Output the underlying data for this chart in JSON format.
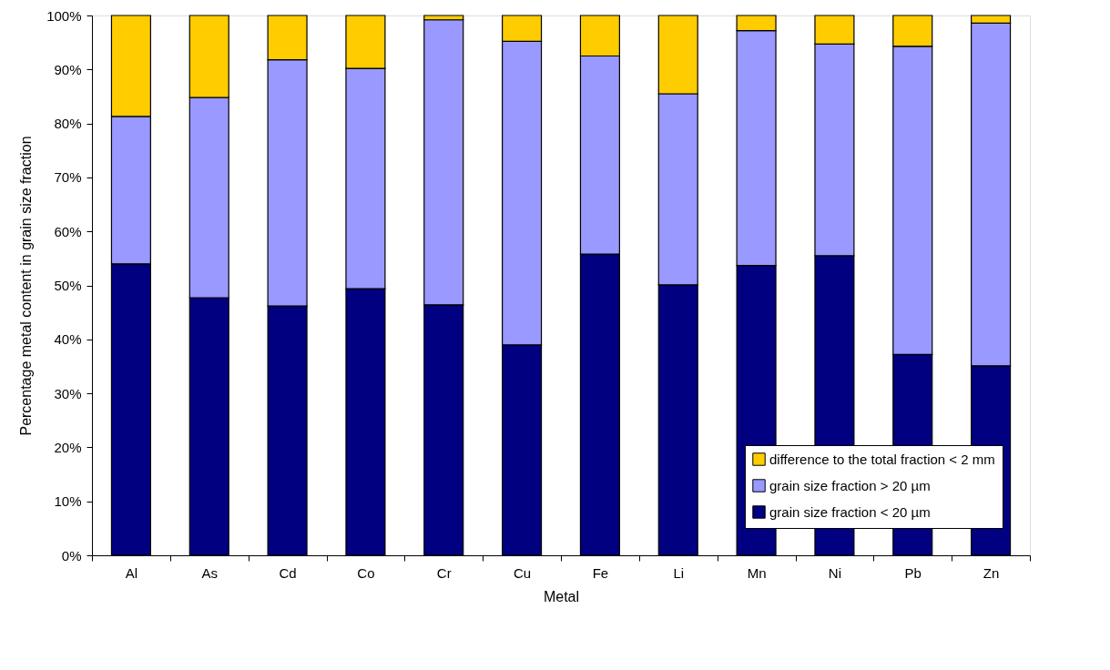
{
  "chart_data": {
    "type": "bar",
    "stacked": true,
    "xlabel": "Metal",
    "ylabel": "Percentage metal content in grain size fraction",
    "categories": [
      "Al",
      "As",
      "Cd",
      "Co",
      "Cr",
      "Cu",
      "Fe",
      "Li",
      "Mn",
      "Ni",
      "Pb",
      "Zn"
    ],
    "series": [
      {
        "name": "grain size fraction < 20 µm",
        "color": "#000080",
        "values": [
          54,
          47.7,
          46.2,
          49.4,
          46.4,
          39,
          55.8,
          50.1,
          53.7,
          55.5,
          37.2,
          35.1
        ]
      },
      {
        "name": "grain size fraction > 20 µm",
        "color": "#9999ff",
        "values": [
          27.3,
          37.1,
          45.6,
          40.8,
          52.8,
          56.2,
          36.7,
          35.4,
          43.5,
          39.2,
          57.1,
          63.5
        ]
      },
      {
        "name": "difference to the total fraction < 2 mm",
        "color": "#ffcc00",
        "values": [
          18.7,
          15.2,
          8.2,
          9.8,
          0.8,
          4.8,
          7.5,
          14.5,
          2.8,
          5.3,
          5.7,
          1.4
        ]
      }
    ],
    "ylim": [
      0,
      100
    ],
    "yticks": [
      {
        "value": 0,
        "label": "0%"
      },
      {
        "value": 10,
        "label": "10%"
      },
      {
        "value": 20,
        "label": "20%"
      },
      {
        "value": 30,
        "label": "30%"
      },
      {
        "value": 40,
        "label": "40%"
      },
      {
        "value": 50,
        "label": "50%"
      },
      {
        "value": 60,
        "label": "60%"
      },
      {
        "value": 70,
        "label": "70%"
      },
      {
        "value": 80,
        "label": "80%"
      },
      {
        "value": 90,
        "label": "90%"
      },
      {
        "value": 100,
        "label": "100%"
      }
    ],
    "grid": false,
    "legend": "bottom right"
  }
}
